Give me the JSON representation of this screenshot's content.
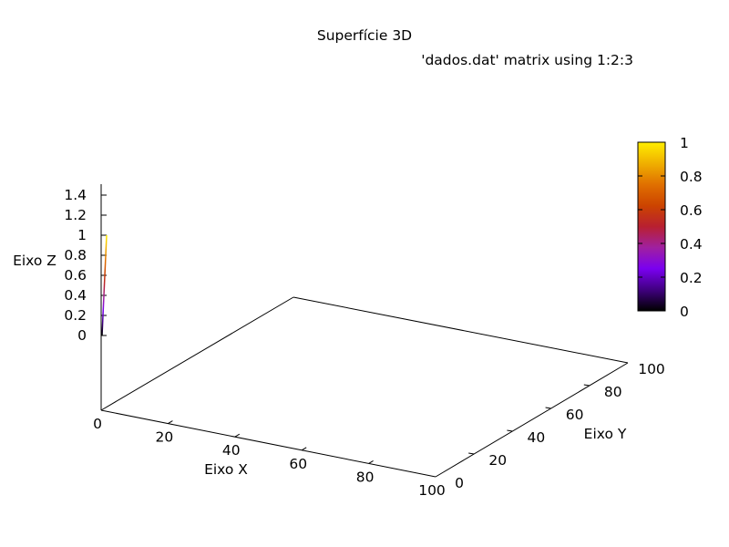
{
  "chart_data": {
    "type": "surface",
    "title": "Superfície 3D",
    "legend": {
      "series_label": "'dados.dat' matrix using 1:2:3",
      "placement": "top-right"
    },
    "xlabel": "Eixo X",
    "ylabel": "Eixo Y",
    "zlabel": "Eixo Z",
    "xlim": [
      0,
      100
    ],
    "ylim": [
      0,
      100
    ],
    "zlim": [
      0,
      1.4
    ],
    "x_ticks": [
      "0",
      "20",
      "40",
      "60",
      "80",
      "100"
    ],
    "y_ticks": [
      "0",
      "20",
      "40",
      "60",
      "80",
      "100"
    ],
    "z_ticks": [
      "0",
      "0.2",
      "0.4",
      "0.6",
      "0.8",
      "1",
      "1.2",
      "1.4"
    ],
    "colorbar": {
      "range": [
        0,
        1
      ],
      "ticks": [
        "0",
        "0.2",
        "0.4",
        "0.6",
        "0.8",
        "1"
      ],
      "palette": [
        "#000000",
        "#400080",
        "#7a00f0",
        "#a020a0",
        "#b82030",
        "#cc4400",
        "#e07000",
        "#f0b000",
        "#ffee00"
      ]
    },
    "data_points": [
      {
        "x": 0,
        "y": 0,
        "z": 0
      },
      {
        "x": 0,
        "y": 0,
        "z": 1
      }
    ],
    "grid": false
  }
}
